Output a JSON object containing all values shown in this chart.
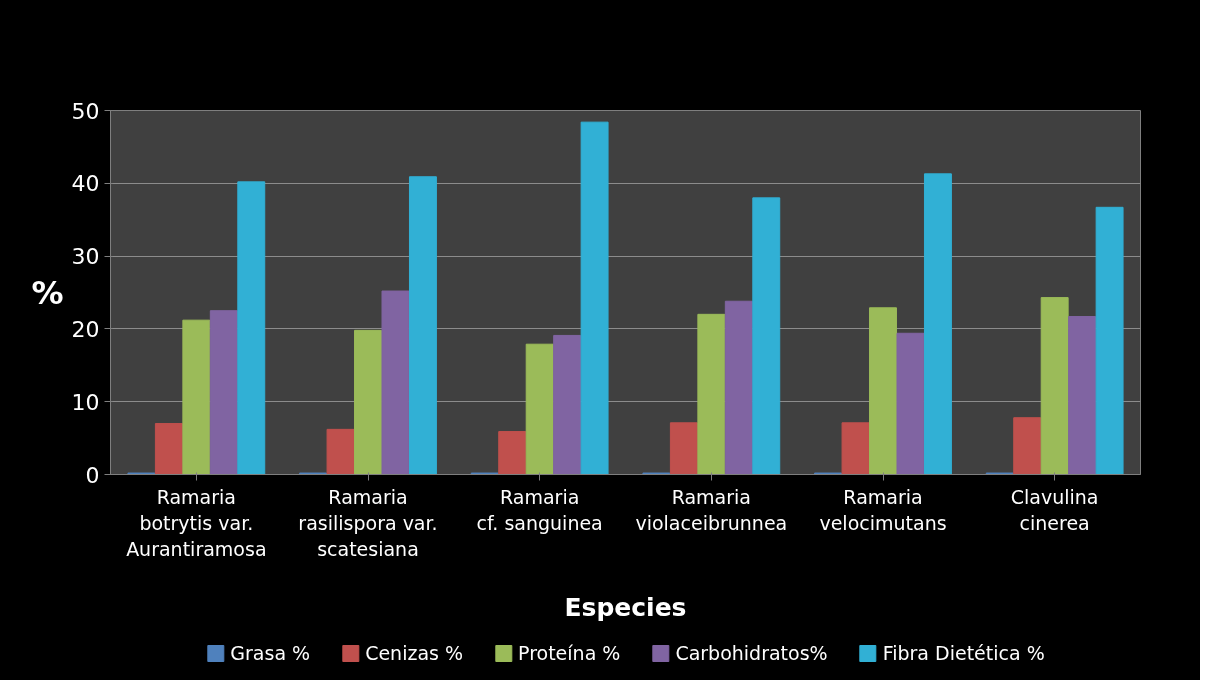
{
  "chart_data": {
    "type": "bar",
    "xlabel": "Especies",
    "ylabel": "%",
    "categories": [
      "Ramaria botrytis var. Aurantiramosa",
      "Ramaria rasilispora var. scatesiana",
      "Ramaria cf. sanguinea",
      "Ramaria violaceibrunnea",
      "Ramaria velocimutans",
      "Clavulina cinerea"
    ],
    "series": [
      {
        "name": "Grasa %",
        "color": "#4f81bd",
        "values": [
          0.2,
          0.2,
          0.2,
          0.2,
          0.2,
          0.2
        ]
      },
      {
        "name": "Cenizas %",
        "color": "#c0504d",
        "values": [
          7.0,
          6.2,
          5.9,
          7.1,
          7.1,
          7.8
        ]
      },
      {
        "name": "Proteína %",
        "color": "#9bbb59",
        "values": [
          21.2,
          19.8,
          17.9,
          22.0,
          22.9,
          24.3
        ]
      },
      {
        "name": "Carbohidratos%",
        "color": "#8064a2",
        "values": [
          22.5,
          25.2,
          19.1,
          23.8,
          19.4,
          21.7
        ]
      },
      {
        "name": "Fibra Dietética %",
        "color": "#31b0d5",
        "values": [
          40.2,
          40.9,
          48.4,
          38.0,
          41.3,
          36.7
        ]
      }
    ],
    "ylim": [
      0,
      50
    ],
    "yticks": [
      0,
      10,
      20,
      30,
      40,
      50
    ],
    "grid": "y",
    "legend": "bottom"
  }
}
